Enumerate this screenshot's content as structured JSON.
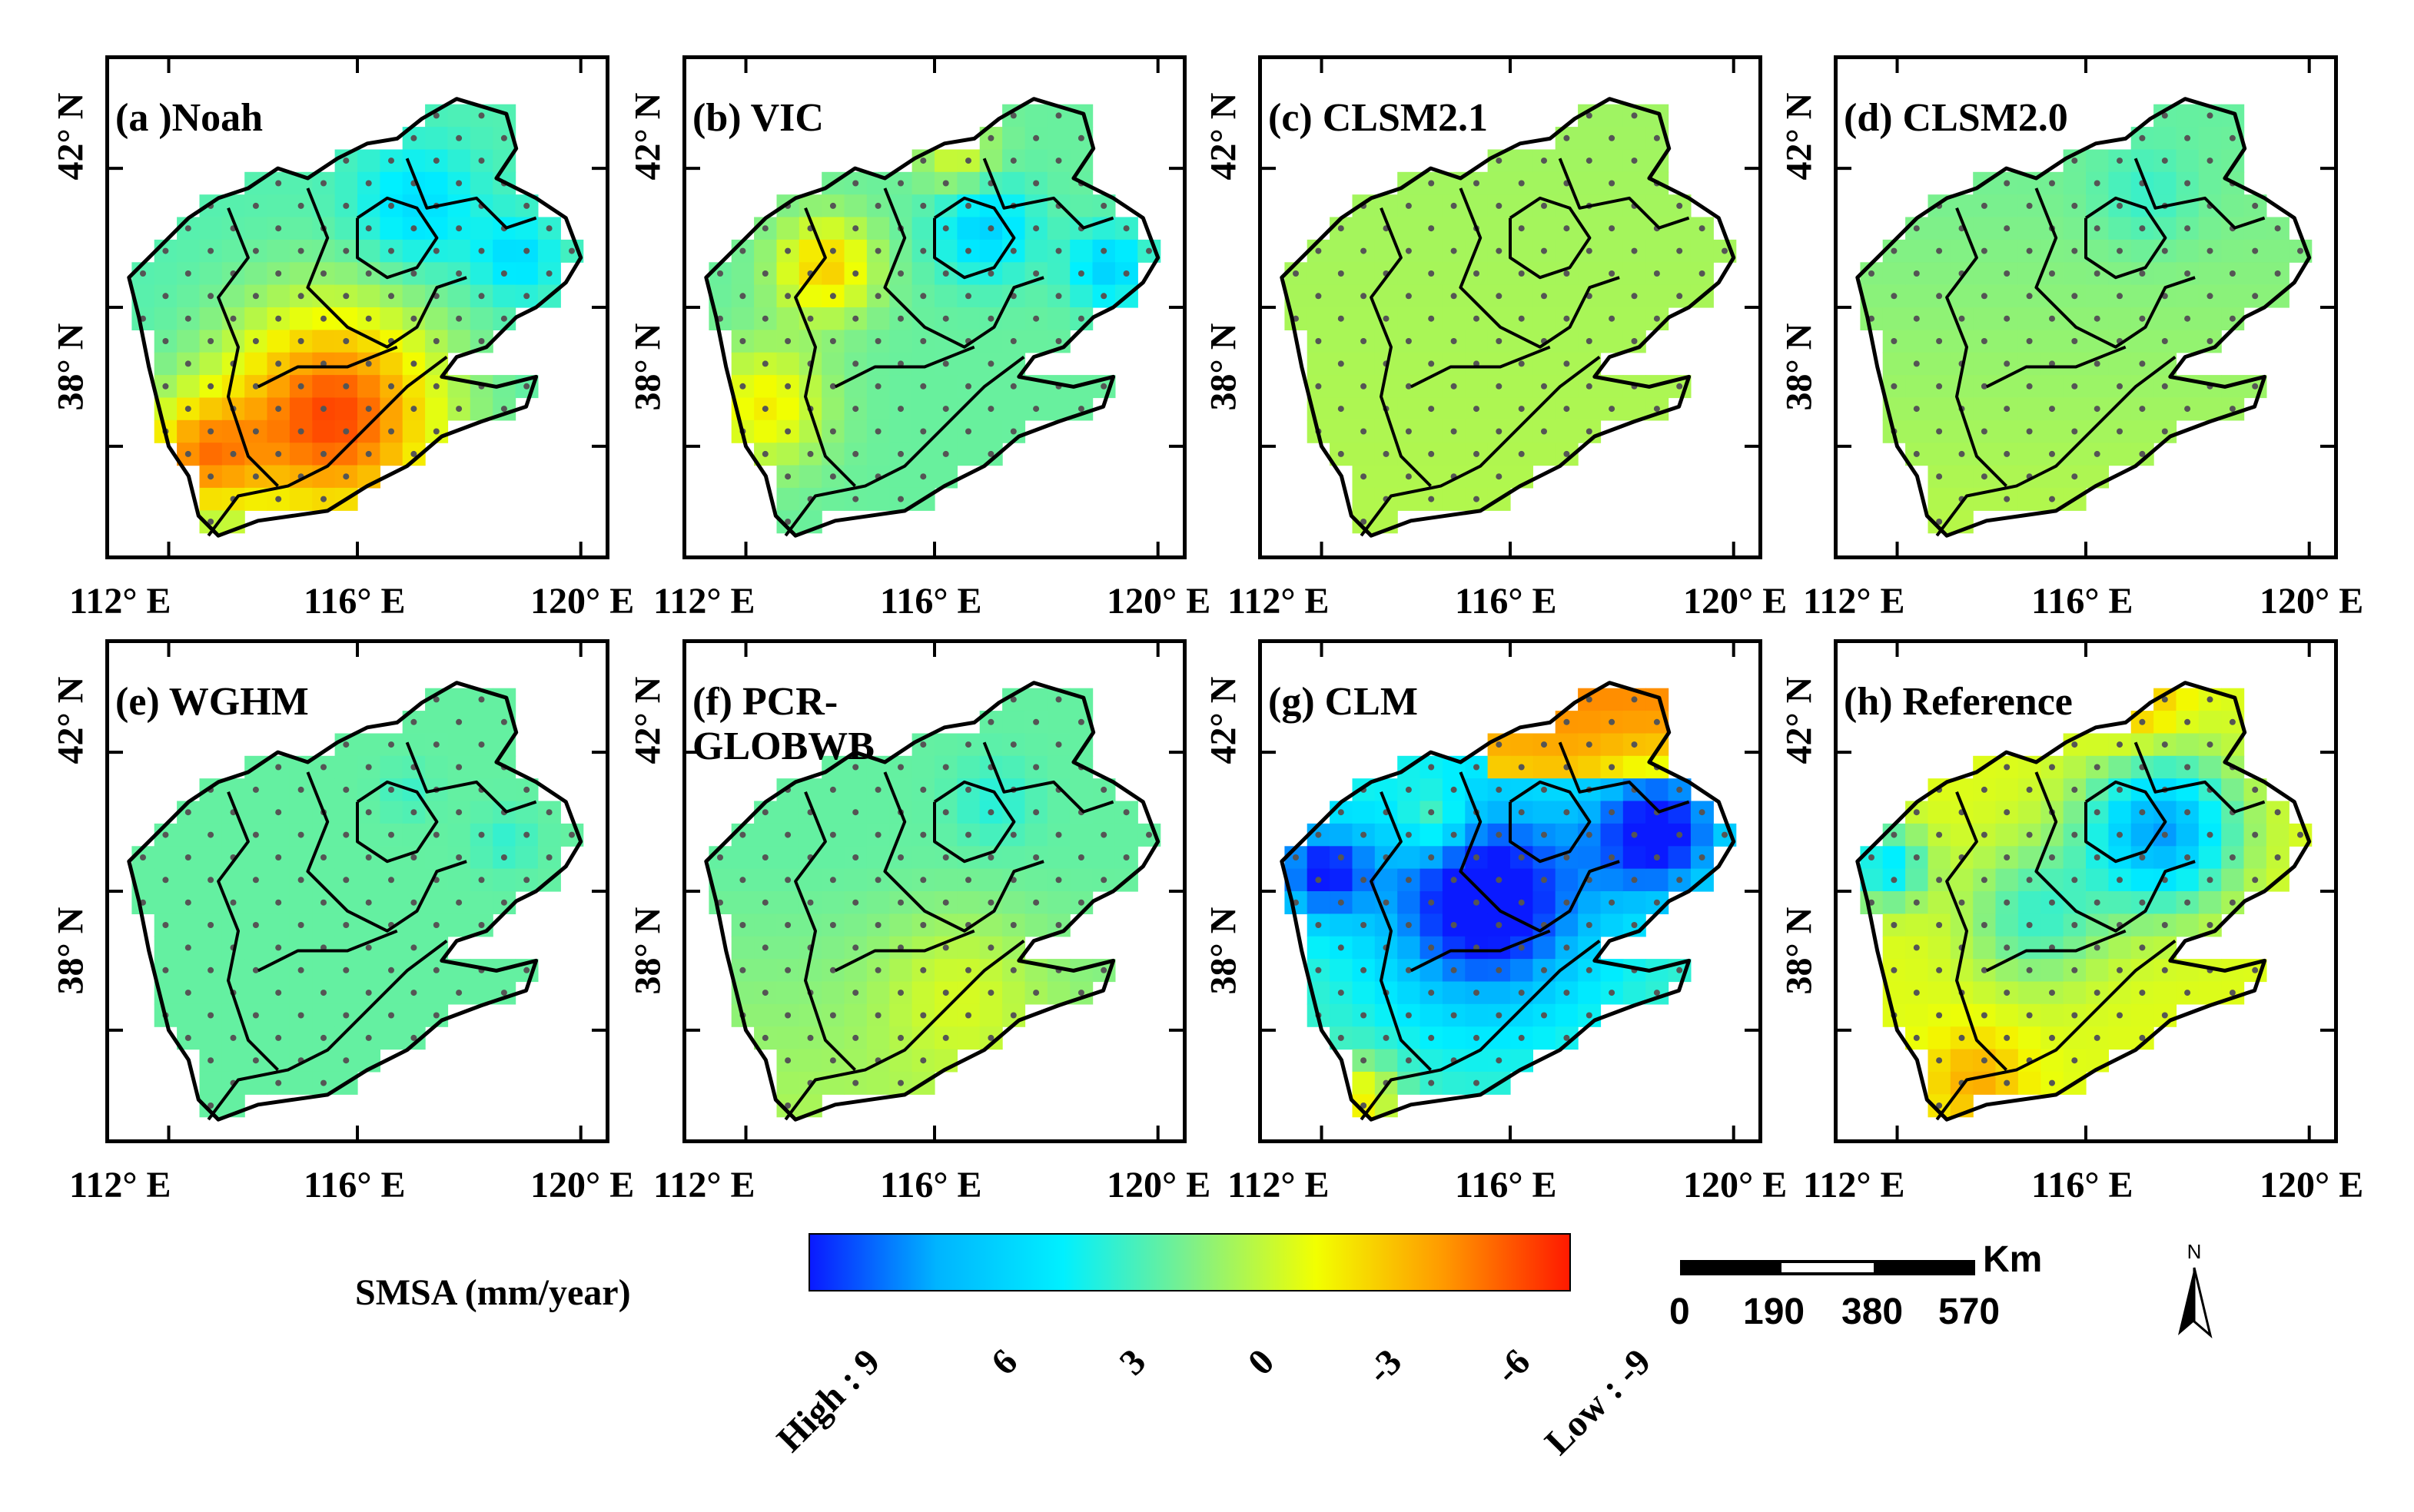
{
  "lat_labels": [
    "42° N",
    "38° N"
  ],
  "lon_labels": [
    "112° E",
    "116° E",
    "120° E"
  ],
  "panels": [
    {
      "id": "a",
      "title": "(a )Noah",
      "scheme": "noah"
    },
    {
      "id": "b",
      "title": "(b) VIC",
      "scheme": "vic"
    },
    {
      "id": "c",
      "title": "(c) CLSM2.1",
      "scheme": "clsm21"
    },
    {
      "id": "d",
      "title": "(d) CLSM2.0",
      "scheme": "clsm20"
    },
    {
      "id": "e",
      "title": "(e) WGHM",
      "scheme": "wghm"
    },
    {
      "id": "f",
      "title": "(f) PCR-\nGLOBWB",
      "scheme": "pcr"
    },
    {
      "id": "g",
      "title": "(g) CLM",
      "scheme": "clm"
    },
    {
      "id": "h",
      "title": "(h) Reference",
      "scheme": "ref"
    }
  ],
  "legend": {
    "title": "SMSA (mm/year)",
    "ticks": [
      "High : 9",
      "6",
      "3",
      "0",
      "-3",
      "-6",
      "Low : -9"
    ],
    "colors": [
      "#0a1aff",
      "#00b4ff",
      "#00f0ff",
      "#7df08a",
      "#f2ff00",
      "#ff9a00",
      "#ff1a00"
    ]
  },
  "scale_bar": {
    "unit": "Km",
    "ticks": [
      "0",
      "190",
      "380",
      "570"
    ]
  },
  "north_arrow": {
    "label": "N",
    "icon": "north-arrow-icon"
  }
}
